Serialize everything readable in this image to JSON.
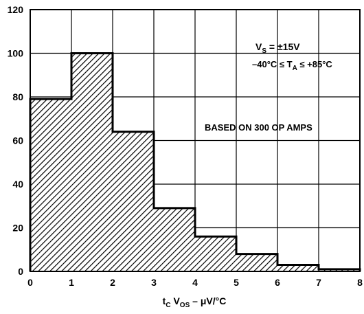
{
  "chart_data": {
    "type": "bar",
    "title": "",
    "xlabel": {
      "base": "t",
      "sub1": "C",
      "mid": " V",
      "sub2": "OS",
      "tail": " – μV/°C"
    },
    "ylabel": "",
    "xlim": [
      0,
      8
    ],
    "ylim": [
      0,
      120
    ],
    "x_ticks": [
      0,
      1,
      2,
      3,
      4,
      5,
      6,
      7,
      8
    ],
    "y_ticks": [
      0,
      20,
      40,
      60,
      80,
      100,
      120
    ],
    "grid": true,
    "bin_edges": [
      0,
      1,
      2,
      3,
      4,
      5,
      6,
      7,
      8
    ],
    "values": [
      79,
      100,
      64,
      29,
      16,
      8,
      3,
      1
    ],
    "hatch": "diagonal",
    "annotations": {
      "supply": {
        "prefix": "V",
        "sub": "S",
        "suffix": " = ±15V"
      },
      "temp": {
        "prefix": "–40°C ≤ T",
        "sub": "A",
        "suffix": " ≤ +85°C"
      },
      "basis": "BASED ON 300 OP AMPS"
    }
  }
}
